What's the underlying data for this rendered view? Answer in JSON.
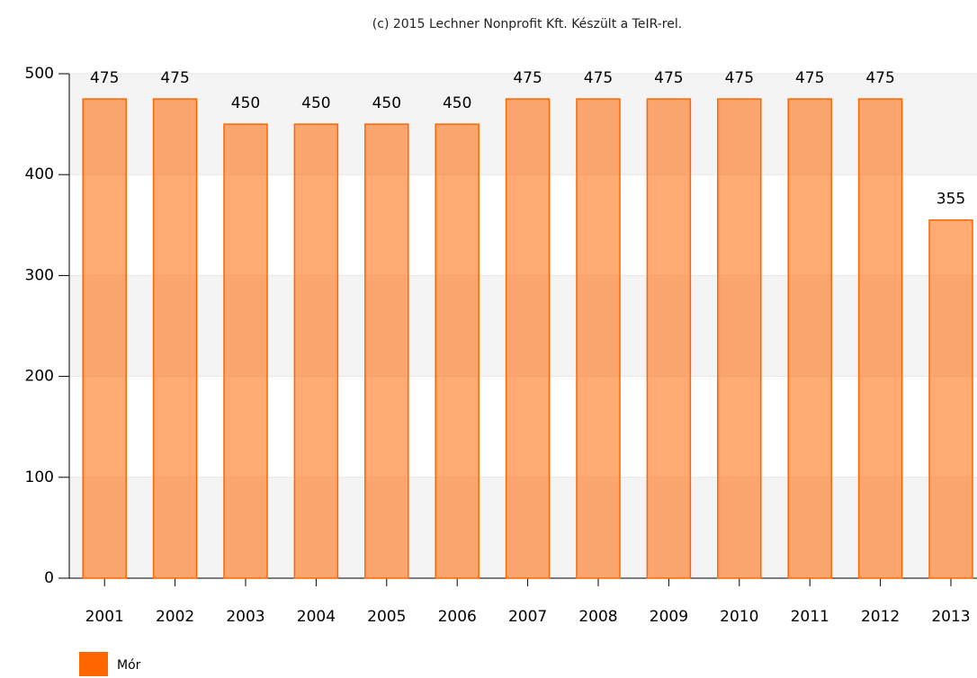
{
  "chart_data": {
    "type": "bar",
    "title": "(c) 2015 Lechner Nonprofit Kft. Készült a TeIR-rel.",
    "categories": [
      "2001",
      "2002",
      "2003",
      "2004",
      "2005",
      "2006",
      "2007",
      "2008",
      "2009",
      "2010",
      "2011",
      "2012",
      "2013"
    ],
    "series": [
      {
        "name": "Mór",
        "color": "#ff6600",
        "values": [
          475,
          475,
          450,
          450,
          450,
          450,
          475,
          475,
          475,
          475,
          475,
          475,
          355
        ]
      }
    ],
    "ylim": [
      0,
      500
    ],
    "yticks": [
      0,
      100,
      200,
      300,
      400,
      500
    ],
    "grid": true
  }
}
